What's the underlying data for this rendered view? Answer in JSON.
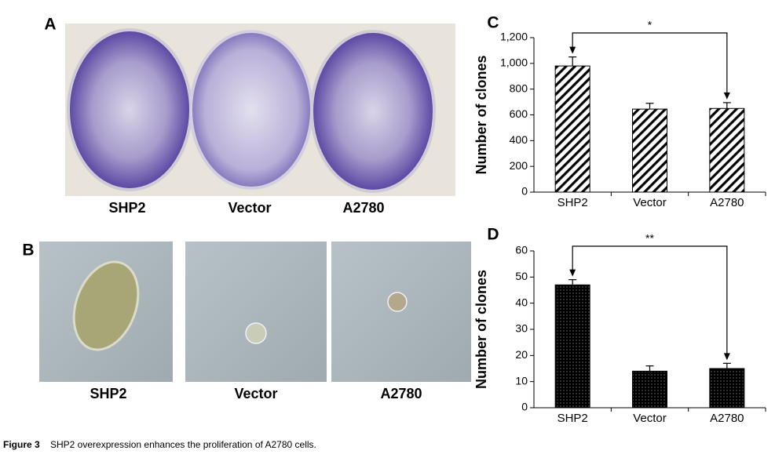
{
  "figure": {
    "panels": [
      {
        "label": "A",
        "images": [
          "SHP2",
          "Vector",
          "A2780"
        ]
      },
      {
        "label": "B",
        "images": [
          "SHP2",
          "Vector",
          "A2780"
        ]
      }
    ],
    "caption_label": "Figure 3",
    "caption": "SHP2 overexpression enhances the proliferation of A2780 cells."
  },
  "chart_data": [
    {
      "type": "bar",
      "label": "C",
      "ylabel": "Number of clones",
      "categories": [
        "SHP2",
        "Vector",
        "A2780"
      ],
      "values": [
        980,
        645,
        650
      ],
      "errors": [
        70,
        45,
        45
      ],
      "color": "#000000",
      "pattern": "hatch",
      "ylim": [
        0,
        1200
      ],
      "yticks": [
        0,
        200,
        400,
        600,
        800,
        {
          "value": 1000,
          "label": "1,000"
        },
        {
          "value": 1200,
          "label": "1,200"
        }
      ],
      "annotation": "*"
    },
    {
      "type": "bar",
      "label": "D",
      "ylabel": "Number of clones",
      "categories": [
        "SHP2",
        "Vector",
        "A2780"
      ],
      "values": [
        47,
        14,
        15
      ],
      "errors": [
        2,
        2,
        2
      ],
      "color": "#000000",
      "pattern": "dots",
      "ylim": [
        0,
        60
      ],
      "yticks": [
        0,
        10,
        20,
        30,
        40,
        50,
        60
      ],
      "annotation": "**"
    }
  ]
}
